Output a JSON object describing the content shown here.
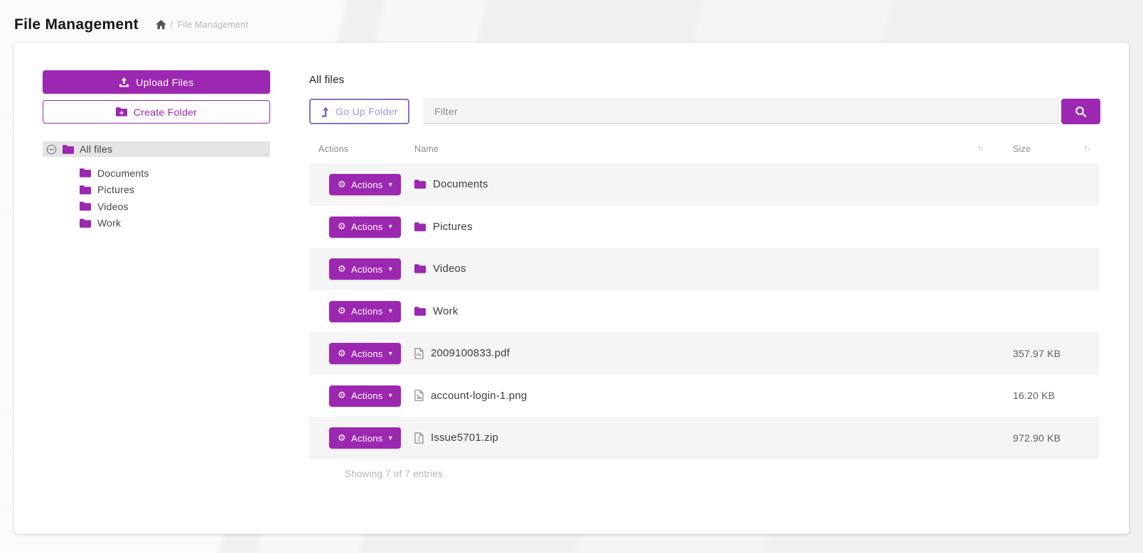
{
  "header": {
    "title": "File Management",
    "breadcrumb_separator": "/",
    "breadcrumb_current": "File Management"
  },
  "sidebar": {
    "upload_label": "Upload Files",
    "create_folder_label": "Create Folder",
    "tree_root_label": "All files",
    "tree_children": [
      "Documents",
      "Pictures",
      "Videos",
      "Work"
    ]
  },
  "content": {
    "folder_title": "All files",
    "toolbar": {
      "go_up_label": "Go Up Folder",
      "filter_placeholder": "Filter"
    },
    "table": {
      "columns": {
        "actions": "Actions",
        "name": "Name",
        "size": "Size"
      },
      "actions_button_label": "Actions",
      "rows": [
        {
          "type": "folder",
          "name": "Documents",
          "size": ""
        },
        {
          "type": "folder",
          "name": "Pictures",
          "size": ""
        },
        {
          "type": "folder",
          "name": "Videos",
          "size": ""
        },
        {
          "type": "folder",
          "name": "Work",
          "size": ""
        },
        {
          "type": "pdf",
          "name": "2009100833.pdf",
          "size": "357.97 KB"
        },
        {
          "type": "image",
          "name": "account-login-1.png",
          "size": "16.20 KB"
        },
        {
          "type": "archive",
          "name": "Issue5701.zip",
          "size": "972.90 KB"
        }
      ]
    },
    "footer_summary": "Showing 7 of 7 entries"
  },
  "colors": {
    "accent": "#9c27b0",
    "row_alt": "#f5f5f5",
    "tree_selected_bg": "#e4e4e4"
  }
}
